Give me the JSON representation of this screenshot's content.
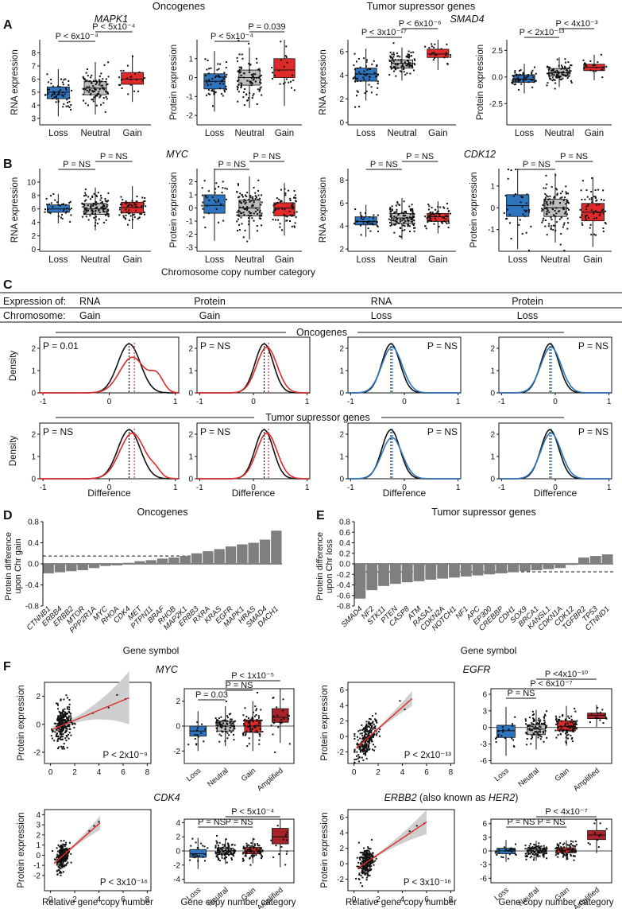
{
  "colors": {
    "blue": "#2e74bf",
    "gray": "#bdbdbd",
    "red": "#e02a2a",
    "dark_red": "#a8232a",
    "black": "#111111",
    "band": "#cfcfcf"
  },
  "section_headers": {
    "oncogenes": "Oncogenes",
    "tsg": "Tumor supressor genes"
  },
  "panel_letters": [
    "A",
    "B",
    "C",
    "D",
    "E",
    "F"
  ],
  "axis_titles": {
    "rna_expression": "RNA expression",
    "protein_expression": "Protein expression",
    "density": "Density",
    "difference": "Difference",
    "chr_copy_category": "Chromosome copy number category",
    "protein_diff_gain": "Protein difference\nupon Chr gain",
    "protein_diff_loss": "Protein difference\nupon Chr loss",
    "gene_symbol": "Gene symbol",
    "relative_gene_copy": "Relative gene copy number",
    "gene_copy_category": "Gene copy number category"
  },
  "categories3": [
    "Loss",
    "Neutral",
    "Gain"
  ],
  "categories4": [
    "Loss",
    "Neutral",
    "Gain",
    "Amplified"
  ],
  "panel_c_table": {
    "row1_label": "Expression of:",
    "row2_label": "Chromosome:",
    "expression": [
      "RNA",
      "Protein",
      "RNA",
      "Protein"
    ],
    "chromosome": [
      "Gain",
      "Gain",
      "Loss",
      "Loss"
    ]
  },
  "chart_data": [
    {
      "panel": "A",
      "type": "box",
      "gene": "MAPK1",
      "ylabel": "RNA expression",
      "ylim": [
        2.5,
        9
      ],
      "yticks": [
        3,
        4,
        5,
        6,
        7,
        8
      ],
      "categories": [
        "Loss",
        "Neutral",
        "Gain"
      ],
      "boxes": [
        {
          "q1": 4.5,
          "median": 5.0,
          "q3": 5.4
        },
        {
          "q1": 4.8,
          "median": 5.3,
          "q3": 5.8
        },
        {
          "q1": 5.6,
          "median": 6.0,
          "q3": 6.5
        }
      ],
      "pvalues": [
        "P < 6x10⁻⁴",
        "P < 5x10⁻⁴"
      ]
    },
    {
      "panel": "A",
      "type": "box",
      "gene": "",
      "ylabel": "Protein expression",
      "ylim": [
        -2.5,
        2
      ],
      "yticks": [
        -2,
        -1,
        0,
        1
      ],
      "categories": [
        "Loss",
        "Neutral",
        "Gain"
      ],
      "boxes": [
        {
          "q1": -0.6,
          "median": -0.2,
          "q3": 0.2
        },
        {
          "q1": -0.4,
          "median": 0.0,
          "q3": 0.4
        },
        {
          "q1": 0.0,
          "median": 0.4,
          "q3": 1.0
        }
      ],
      "pvalues": [
        "P < 5x10⁻⁴",
        "P = 0.039"
      ]
    },
    {
      "panel": "A",
      "type": "box",
      "gene": "",
      "ylabel": "RNA expression",
      "ylim": [
        -0.2,
        7
      ],
      "yticks": [
        0,
        2,
        4,
        6
      ],
      "categories": [
        "Loss",
        "Neutral",
        "Gain"
      ],
      "boxes": [
        {
          "q1": 3.5,
          "median": 4.1,
          "q3": 4.6
        },
        {
          "q1": 4.6,
          "median": 5.0,
          "q3": 5.3
        },
        {
          "q1": 5.5,
          "median": 5.8,
          "q3": 6.2
        }
      ],
      "pvalues": [
        "P < 3x10⁻¹⁷",
        "P < 6x10⁻⁶"
      ]
    },
    {
      "panel": "A",
      "type": "box",
      "gene": "SMAD4",
      "ylabel": "Protein expression",
      "ylim": [
        -4.5,
        3.5
      ],
      "yticks": [
        -2.5,
        0.0,
        2.5
      ],
      "categories": [
        "Loss",
        "Neutral",
        "Gain"
      ],
      "boxes": [
        {
          "q1": -0.5,
          "median": -0.2,
          "q3": 0.2
        },
        {
          "q1": 0.1,
          "median": 0.4,
          "q3": 0.8
        },
        {
          "q1": 0.6,
          "median": 0.9,
          "q3": 1.2
        }
      ],
      "pvalues": [
        "P < 2x10⁻¹³",
        "P < 4x10⁻³"
      ]
    },
    {
      "panel": "B",
      "type": "box",
      "gene": "",
      "ylabel": "RNA expression",
      "ylim": [
        -0.3,
        12
      ],
      "yticks": [
        0,
        2,
        4,
        6,
        8,
        10
      ],
      "categories": [
        "Loss",
        "Neutral",
        "Gain"
      ],
      "boxes": [
        {
          "q1": 5.5,
          "median": 6.0,
          "q3": 6.6
        },
        {
          "q1": 5.2,
          "median": 6.0,
          "q3": 6.8
        },
        {
          "q1": 5.4,
          "median": 6.2,
          "q3": 7.0
        }
      ],
      "pvalues": [
        "P = NS",
        "P = NS"
      ]
    },
    {
      "panel": "B",
      "type": "box",
      "gene": "MYC",
      "ylabel": "Protein expression",
      "ylim": [
        -3.3,
        3.0
      ],
      "yticks": [
        -3,
        -2,
        -1,
        0,
        1,
        2
      ],
      "categories": [
        "Loss",
        "Neutral",
        "Gain"
      ],
      "boxes": [
        {
          "q1": -0.4,
          "median": 0.2,
          "q3": 1.0
        },
        {
          "q1": -0.6,
          "median": 0.0,
          "q3": 0.6
        },
        {
          "q1": -0.6,
          "median": 0.0,
          "q3": 0.4
        }
      ],
      "pvalues": [
        "P = NS",
        "P = NS"
      ]
    },
    {
      "panel": "B",
      "type": "box",
      "gene": "",
      "ylabel": "RNA expression",
      "ylim": [
        1.8,
        9
      ],
      "yticks": [
        2,
        4,
        6,
        8
      ],
      "categories": [
        "Loss",
        "Neutral",
        "Gain"
      ],
      "boxes": [
        {
          "q1": 4.1,
          "median": 4.4,
          "q3": 4.8
        },
        {
          "q1": 4.2,
          "median": 4.7,
          "q3": 5.1
        },
        {
          "q1": 4.4,
          "median": 4.8,
          "q3": 5.1
        }
      ],
      "pvalues": [
        "P = NS",
        "P = NS"
      ]
    },
    {
      "panel": "B",
      "type": "box",
      "gene": "CDK12",
      "ylabel": "Protein expression",
      "ylim": [
        -2.0,
        1.8
      ],
      "yticks": [
        -1,
        0,
        1
      ],
      "categories": [
        "Loss",
        "Neutral",
        "Gain"
      ],
      "boxes": [
        {
          "q1": -0.4,
          "median": 0.1,
          "q3": 0.6
        },
        {
          "q1": -0.4,
          "median": 0.0,
          "q3": 0.4
        },
        {
          "q1": -0.6,
          "median": -0.2,
          "q3": 0.2
        }
      ],
      "pvalues": [
        "P = NS",
        "P = NS"
      ]
    },
    {
      "panel": "C",
      "type": "density",
      "row": "Oncogenes",
      "series_color": "red",
      "peak": 0.3,
      "pvalue": "P = 0.01",
      "xlim": [
        -1.05,
        1.05
      ],
      "xticks": [
        -1,
        0,
        1
      ],
      "ylim": [
        0,
        2.5
      ],
      "yticks": [
        0,
        1,
        2
      ]
    },
    {
      "panel": "C",
      "type": "density",
      "row": "Oncogenes",
      "series_color": "red",
      "peak": 0.2,
      "pvalue": "P = NS",
      "xlim": [
        -1.05,
        1.05
      ],
      "xticks": [
        -1,
        0,
        1
      ],
      "ylim": [
        0,
        2.5
      ],
      "yticks": [
        0,
        1,
        2
      ]
    },
    {
      "panel": "C",
      "type": "density",
      "row": "Oncogenes",
      "series_color": "blue",
      "peak": -0.25,
      "pvalue": "P = NS",
      "xlim": [
        -1.05,
        1.05
      ],
      "xticks": [
        -1,
        0,
        1
      ],
      "ylim": [
        0,
        2.5
      ],
      "yticks": [
        0,
        1,
        2
      ]
    },
    {
      "panel": "C",
      "type": "density",
      "row": "Oncogenes",
      "series_color": "blue",
      "peak": -0.1,
      "pvalue": "P = NS",
      "xlim": [
        -1.05,
        1.05
      ],
      "xticks": [
        -1,
        0,
        1
      ],
      "ylim": [
        0,
        2.5
      ],
      "yticks": [
        0,
        1,
        2
      ]
    },
    {
      "panel": "C",
      "type": "density",
      "row": "Tumor supressor genes",
      "series_color": "red",
      "peak": 0.3,
      "pvalue": "P = NS",
      "xlim": [
        -1.05,
        1.05
      ],
      "xticks": [
        -1,
        0,
        1
      ],
      "ylim": [
        0,
        2.5
      ],
      "yticks": [
        0,
        1,
        2
      ]
    },
    {
      "panel": "C",
      "type": "density",
      "row": "Tumor supressor genes",
      "series_color": "red",
      "peak": 0.2,
      "pvalue": "P = NS",
      "xlim": [
        -1.05,
        1.05
      ],
      "xticks": [
        -1,
        0,
        1
      ],
      "ylim": [
        0,
        2.5
      ],
      "yticks": [
        0,
        1,
        2
      ]
    },
    {
      "panel": "C",
      "type": "density",
      "row": "Tumor supressor genes",
      "series_color": "blue",
      "peak": -0.25,
      "pvalue": "P = NS",
      "xlim": [
        -1.05,
        1.05
      ],
      "xticks": [
        -1,
        0,
        1
      ],
      "ylim": [
        0,
        2.5
      ],
      "yticks": [
        0,
        1,
        2
      ]
    },
    {
      "panel": "C",
      "type": "density",
      "row": "Tumor supressor genes",
      "series_color": "blue",
      "peak": -0.1,
      "pvalue": "P = NS",
      "xlim": [
        -1.05,
        1.05
      ],
      "xticks": [
        -1,
        0,
        1
      ],
      "ylim": [
        0,
        2.5
      ],
      "yticks": [
        0,
        1,
        2
      ]
    },
    {
      "panel": "D",
      "type": "bar",
      "title": "Oncogenes",
      "ylim": [
        -0.8,
        0.8
      ],
      "yticks": [
        -0.8,
        -0.4,
        0.0,
        0.4,
        0.8
      ],
      "threshold": 0.15,
      "categories": [
        "CTNNB1",
        "ERBB4",
        "ERBB2",
        "MTOR",
        "PPP2R1A",
        "MYC",
        "RHOA",
        "CDK4",
        "MET",
        "PTPN11",
        "BRAF",
        "RHOB",
        "MAP2K1",
        "ERBB3",
        "RXRA",
        "KRAS",
        "EGFR",
        "MAPK1",
        "HRAS",
        "SMAD4",
        "DACH1"
      ],
      "values": [
        -0.18,
        -0.16,
        -0.14,
        -0.12,
        -0.08,
        -0.04,
        -0.03,
        0.02,
        0.05,
        0.07,
        0.1,
        0.12,
        0.15,
        0.2,
        0.24,
        0.28,
        0.33,
        0.37,
        0.4,
        0.46,
        0.63
      ]
    },
    {
      "panel": "E",
      "type": "bar",
      "title": "Tumor supressor genes",
      "ylim": [
        -0.8,
        0.8
      ],
      "yticks": [
        -0.8,
        -0.6,
        -0.4,
        -0.2,
        0.0,
        0.2,
        0.4,
        0.6,
        0.8
      ],
      "threshold": -0.15,
      "categories": [
        "SMAD4",
        "NF2",
        "STK11",
        "PTEN",
        "CASP8",
        "ATM",
        "RASA1",
        "CDKN2A",
        "NOTCH1",
        "NF1",
        "APC",
        "EP300",
        "CREBBP",
        "CDH1",
        "SOX9",
        "BRCA1",
        "KANSL1",
        "CDKN1A",
        "CDK12",
        "TGFBR2",
        "TP53",
        "CTNND1"
      ],
      "values": [
        -0.66,
        -0.5,
        -0.42,
        -0.38,
        -0.35,
        -0.33,
        -0.3,
        -0.28,
        -0.26,
        -0.24,
        -0.22,
        -0.2,
        -0.18,
        -0.16,
        -0.14,
        -0.12,
        -0.1,
        -0.08,
        -0.02,
        0.12,
        0.15,
        0.18
      ]
    },
    {
      "panel": "F",
      "type": "scatter",
      "gene": "MYC",
      "xlabel": "",
      "ylabel": "Protein expression",
      "xlim": [
        -0.5,
        8.3
      ],
      "ylim": [
        -2.8,
        3.0
      ],
      "xticks": [
        0,
        2,
        4,
        6,
        8
      ],
      "yticks": [
        -2,
        0,
        2
      ],
      "pvalue": "P < 2x10⁻⁹",
      "fit": [
        [
          0.2,
          -0.35
        ],
        [
          6.5,
          1.9
        ]
      ]
    },
    {
      "panel": "F",
      "type": "box",
      "gene": "",
      "ylabel": "",
      "ylim": [
        -3.0,
        3.0
      ],
      "yticks": [
        -2,
        0,
        2
      ],
      "categories": [
        "Loss",
        "Neutral",
        "Gain",
        "Amplified"
      ],
      "boxes": [
        {
          "q1": -0.8,
          "median": -0.4,
          "q3": 0.0
        },
        {
          "q1": -0.4,
          "median": 0.0,
          "q3": 0.4
        },
        {
          "q1": -0.5,
          "median": 0.0,
          "q3": 0.5
        },
        {
          "q1": 0.3,
          "median": 0.7,
          "q3": 1.4
        }
      ],
      "pvalues": [
        "P = 0.03",
        "P = NS",
        "P < 1x10⁻⁵"
      ]
    },
    {
      "panel": "F",
      "type": "scatter",
      "gene": "EGFR",
      "xlabel": "",
      "ylabel": "Protein expression",
      "xlim": [
        -0.5,
        8.3
      ],
      "ylim": [
        -3.5,
        7.0
      ],
      "xticks": [
        0,
        2,
        4,
        6,
        8
      ],
      "yticks": [
        -2,
        0,
        2,
        4,
        6
      ],
      "pvalue": "P < 2x10⁻¹³",
      "fit": [
        [
          0.2,
          -1.5
        ],
        [
          4.8,
          4.9
        ]
      ]
    },
    {
      "panel": "F",
      "type": "box",
      "gene": "",
      "ylabel": "",
      "ylim": [
        -6.5,
        7.0
      ],
      "yticks": [
        -6,
        -3,
        0,
        3,
        6
      ],
      "categories": [
        "Loss",
        "Neutral",
        "Gain",
        "Amplified"
      ],
      "boxes": [
        {
          "q1": -1.8,
          "median": -0.6,
          "q3": 0.4
        },
        {
          "q1": -1.3,
          "median": -0.3,
          "q3": 0.5
        },
        {
          "q1": -0.6,
          "median": 0.2,
          "q3": 1.2
        },
        {
          "q1": 1.6,
          "median": 2.2,
          "q3": 2.6
        }
      ],
      "pvalues": [
        "P = NS",
        "P < 6x10⁻⁷",
        "P <4x10⁻¹⁰"
      ]
    },
    {
      "panel": "F",
      "type": "scatter",
      "gene": "CDK4",
      "xlabel": "Relative gene copy number",
      "ylabel": "Protein expression",
      "xlim": [
        -0.5,
        8.3
      ],
      "ylim": [
        -3.5,
        4.5
      ],
      "xticks": [
        0,
        2,
        4,
        6,
        8
      ],
      "yticks": [
        -2,
        -1,
        0,
        1,
        2,
        3,
        4
      ],
      "pvalue": "P < 3x10⁻¹⁶",
      "fit": [
        [
          0.3,
          -0.8
        ],
        [
          4.1,
          3.2
        ]
      ]
    },
    {
      "panel": "F",
      "type": "box",
      "gene": "",
      "ylabel": "",
      "ylim": [
        -4.5,
        4.5
      ],
      "yticks": [
        -4,
        -2,
        0,
        2,
        4
      ],
      "categories": [
        "Loss",
        "Neutral",
        "Gain",
        "Amplified"
      ],
      "boxes": [
        {
          "q1": -0.9,
          "median": -0.4,
          "q3": 0.2
        },
        {
          "q1": -0.5,
          "median": 0.0,
          "q3": 0.4
        },
        {
          "q1": -0.4,
          "median": 0.0,
          "q3": 0.5
        },
        {
          "q1": 1.0,
          "median": 2.0,
          "q3": 3.2
        }
      ],
      "pvalues": [
        "P = NS",
        "P = NS",
        "P < 5x10⁻⁴"
      ]
    },
    {
      "panel": "F",
      "type": "scatter",
      "gene": "ERBB2",
      "gene_suffix": "(also known as ",
      "gene_alias": "HER2",
      "gene_suffix_end": ")",
      "xlabel": "Relative gene copy number",
      "ylabel": "Protein expression",
      "xlim": [
        -0.5,
        8.3
      ],
      "ylim": [
        -3.5,
        7.0
      ],
      "xticks": [
        0,
        2,
        4,
        6,
        8
      ],
      "yticks": [
        -2,
        0,
        2,
        4,
        6
      ],
      "pvalue": "P < 3x10⁻¹⁶",
      "fit": [
        [
          0.3,
          -0.6
        ],
        [
          6.0,
          5.4
        ]
      ]
    },
    {
      "panel": "F",
      "type": "box",
      "gene": "",
      "ylabel": "",
      "ylim": [
        -7.0,
        7.0
      ],
      "yticks": [
        -6,
        -3,
        0,
        3,
        6
      ],
      "categories": [
        "Loss",
        "Neutral",
        "Gain",
        "Amplified"
      ],
      "boxes": [
        {
          "q1": -0.6,
          "median": 0.0,
          "q3": 0.6
        },
        {
          "q1": -0.5,
          "median": 0.0,
          "q3": 0.6
        },
        {
          "q1": -0.4,
          "median": 0.2,
          "q3": 0.7
        },
        {
          "q1": 2.5,
          "median": 3.5,
          "q3": 4.5
        }
      ],
      "pvalues": [
        "P = NS",
        "P = NS",
        "P < 4x10⁻⁷"
      ]
    }
  ]
}
